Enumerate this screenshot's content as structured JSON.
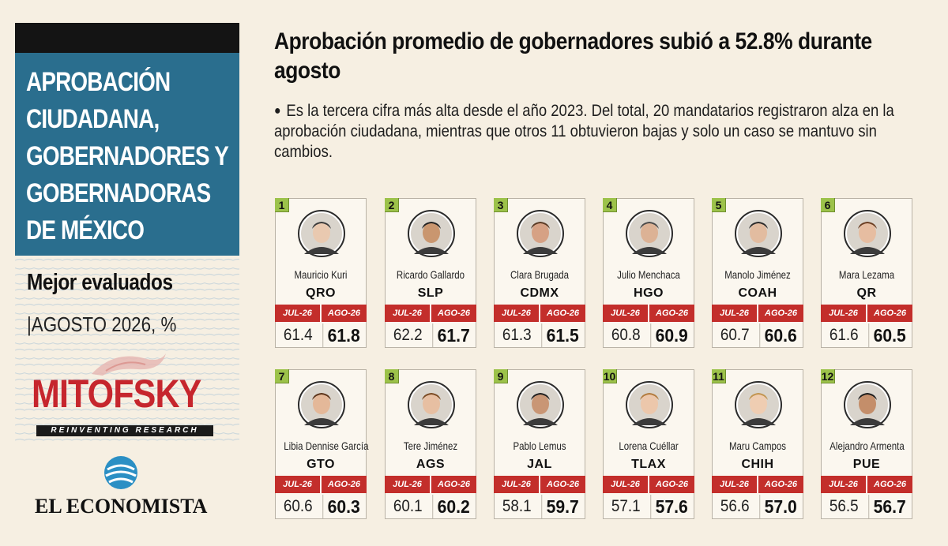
{
  "sidebar": {
    "title": "APROBACIÓN\nCIUDADANA,\nGOBERNADORES Y\nGOBERNADORAS\nDE MÉXICO",
    "subtitle": "Mejor evaluados",
    "date_label": "|AGOSTO 2026, %",
    "mitofsky": "MITOFSKY",
    "mitofsky_tagline": "REINVENTING RESEARCH",
    "economista": "EL ECONOMISTA"
  },
  "headline": "Aprobación promedio de gobernadores subió a 52.8% durante agosto",
  "intro": "Es la tercera cifra más alta desde el año 2023. Del total, 20 mandatarios registraron alza en la aprobación ciudadana, mientras que otros 11 obtuvieron bajas y solo un caso se mantuvo sin cambios.",
  "colors": {
    "sidebar_blue": "#2a6e8e",
    "header_red": "#c32e2b",
    "rank_green": "#9cc24a",
    "mitofsky_red": "#c6262d"
  },
  "chart_data": {
    "type": "table",
    "columns": [
      "JUL-26",
      "AGO-26"
    ],
    "rows": [
      {
        "rank": "1",
        "name": "Mauricio Kuri",
        "state": "QRO",
        "jul": "61.4",
        "ago": "61.8"
      },
      {
        "rank": "2",
        "name": "Ricardo Gallardo",
        "state": "SLP",
        "jul": "62.2",
        "ago": "61.7"
      },
      {
        "rank": "3",
        "name": "Clara Brugada",
        "state": "CDMX",
        "jul": "61.3",
        "ago": "61.5"
      },
      {
        "rank": "4",
        "name": "Julio Menchaca",
        "state": "HGO",
        "jul": "60.8",
        "ago": "60.9"
      },
      {
        "rank": "5",
        "name": "Manolo Jiménez",
        "state": "COAH",
        "jul": "60.7",
        "ago": "60.6"
      },
      {
        "rank": "6",
        "name": "Mara Lezama",
        "state": "QR",
        "jul": "61.6",
        "ago": "60.5"
      },
      {
        "rank": "7",
        "name": "Libia Dennise García",
        "state": "GTO",
        "jul": "60.6",
        "ago": "60.3"
      },
      {
        "rank": "8",
        "name": "Tere Jiménez",
        "state": "AGS",
        "jul": "60.1",
        "ago": "60.2"
      },
      {
        "rank": "9",
        "name": "Pablo Lemus",
        "state": "JAL",
        "jul": "58.1",
        "ago": "59.7"
      },
      {
        "rank": "10",
        "name": "Lorena Cuéllar",
        "state": "TLAX",
        "jul": "57.1",
        "ago": "57.6"
      },
      {
        "rank": "11",
        "name": "Maru Campos",
        "state": "CHIH",
        "jul": "56.6",
        "ago": "57.0"
      },
      {
        "rank": "12",
        "name": "Alejandro Armenta",
        "state": "PUE",
        "jul": "56.5",
        "ago": "56.7"
      }
    ]
  }
}
